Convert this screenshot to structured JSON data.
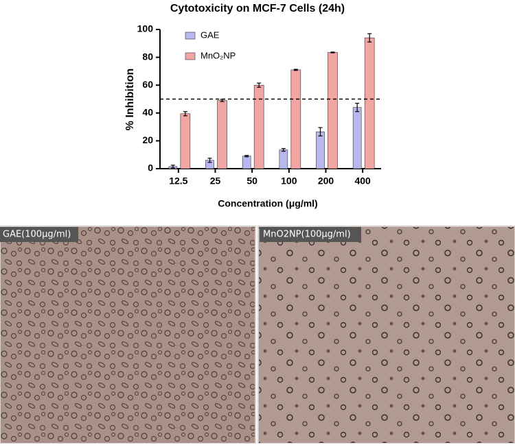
{
  "chart_data": {
    "type": "bar",
    "title": "Cytotoxicity on MCF-7 Cells (24h)",
    "x_label": "Concentration (μg/ml)",
    "y_label": "% Inhibition",
    "categories": [
      "12.5",
      "25",
      "50",
      "100",
      "200",
      "400"
    ],
    "series": [
      {
        "name": "GAE",
        "color": "#b8b8f0",
        "values": [
          1.5,
          6,
          9,
          13.5,
          26.5,
          44
        ],
        "errors": [
          1,
          1.5,
          0.5,
          1,
          3,
          3
        ]
      },
      {
        "name": "MnO₂NP",
        "color": "#f2a6a4",
        "values": [
          39.5,
          49,
          60,
          71,
          83.5,
          94
        ],
        "errors": [
          1.5,
          0.8,
          1.5,
          0.4,
          0.3,
          3
        ]
      }
    ],
    "threshold": 50,
    "ylim": [
      0,
      100
    ],
    "yticks": [
      0,
      20,
      40,
      60,
      80,
      100
    ],
    "grid": false,
    "legend": "top-left"
  },
  "panels": [
    {
      "label": "GAE(100μg/ml)"
    },
    {
      "label": "MnO2NP(100μg/ml)"
    }
  ]
}
